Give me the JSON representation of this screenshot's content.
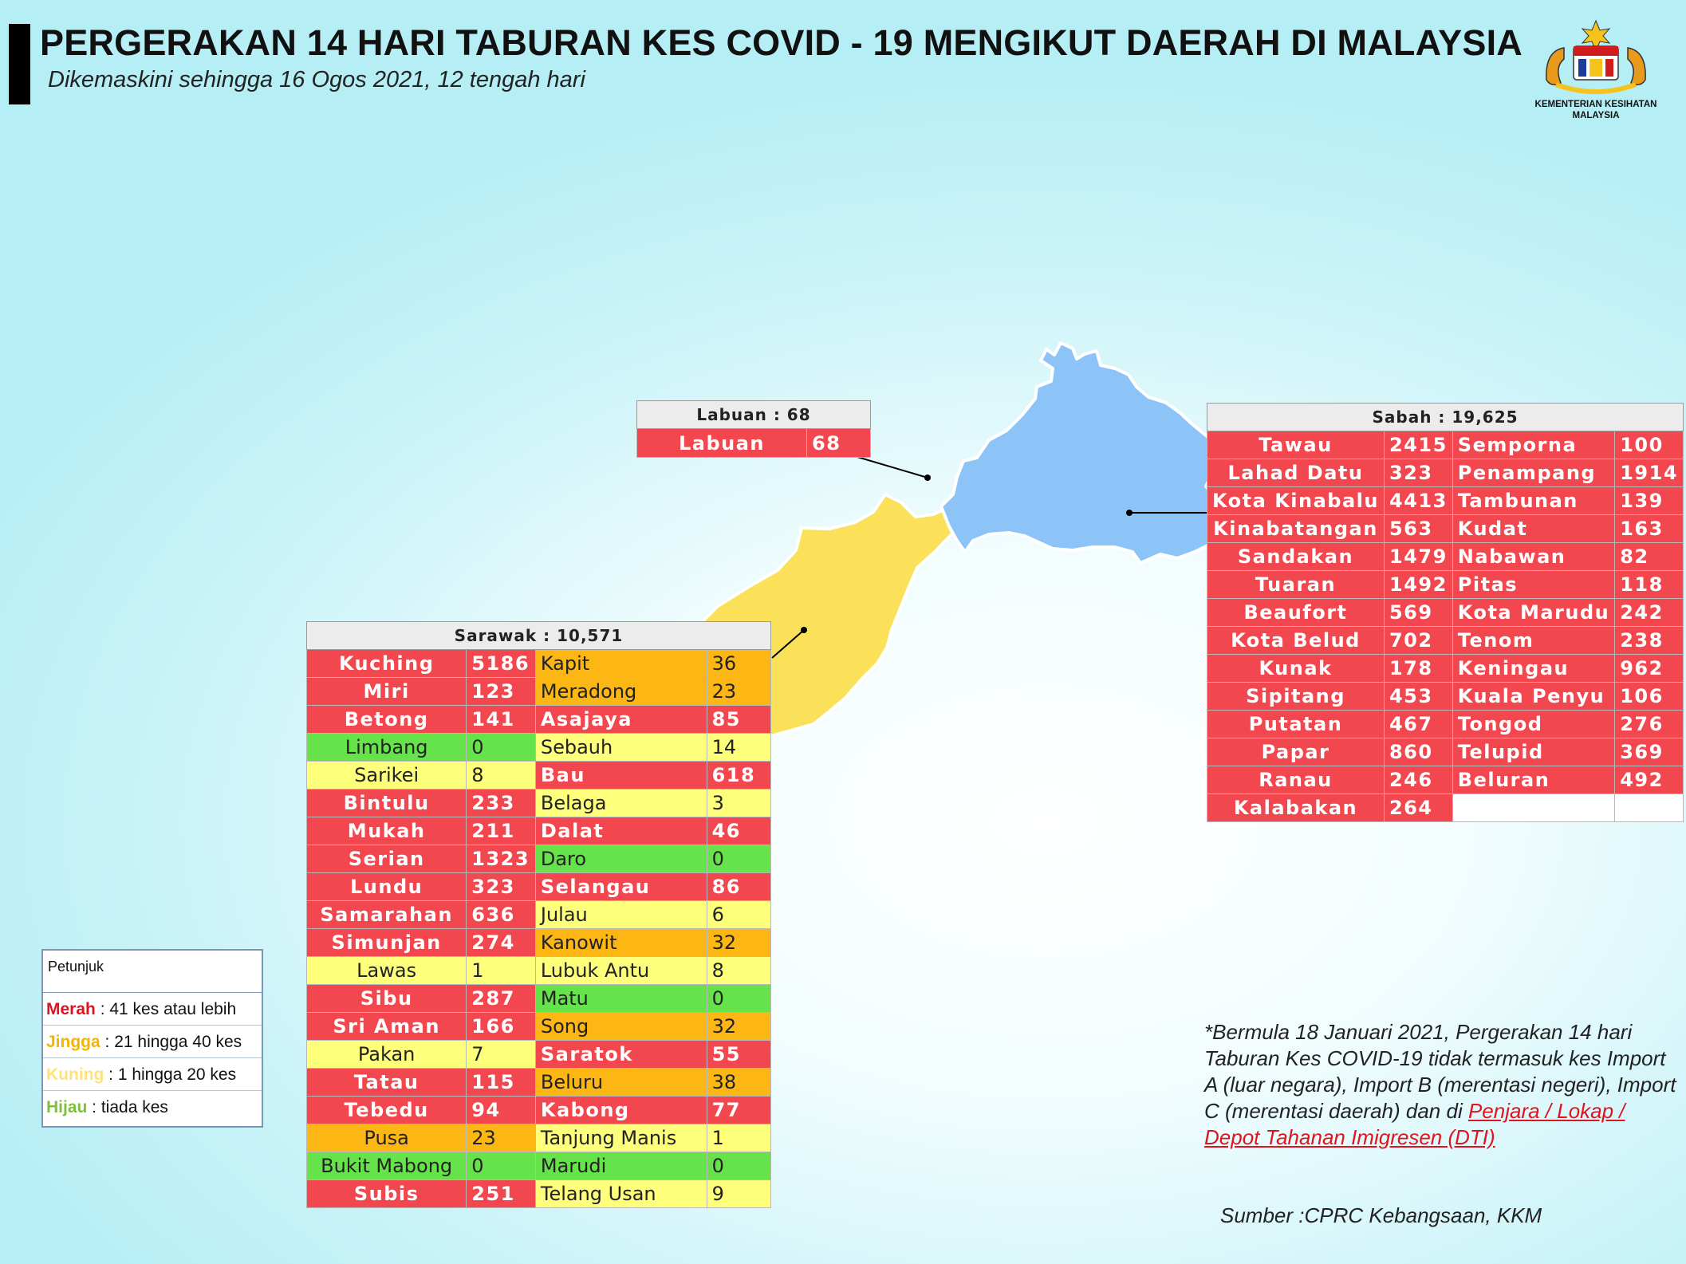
{
  "header": {
    "title": "PERGERAKAN 14 HARI TABURAN KES COVID - 19 MENGIKUT DAERAH DI MALAYSIA",
    "subtitle": "Dikemaskini sehingga 16 Ogos 2021, 12 tengah hari"
  },
  "logo": {
    "text": "KEMENTERIAN KESIHATAN MALAYSIA",
    "icon": "malaysia-coat-of-arms-icon"
  },
  "colors": {
    "merah": "#f2474f",
    "jingga": "#fdb714",
    "kuning": "#feff7a",
    "hijau": "#66e34a",
    "sabah_map": "#8dc4f7",
    "sarawak_map": "#fbe15a"
  },
  "labuan": {
    "title": "Labuan : 68",
    "rows": [
      {
        "name": "Labuan",
        "value": "68",
        "level": "r"
      }
    ]
  },
  "sabah": {
    "title": "Sabah : 19,625",
    "rows": [
      [
        {
          "name": "Tawau",
          "value": "2415",
          "level": "r"
        },
        {
          "name": "Semporna",
          "value": "100",
          "level": "r"
        }
      ],
      [
        {
          "name": "Lahad Datu",
          "value": "323",
          "level": "r"
        },
        {
          "name": "Penampang",
          "value": "1914",
          "level": "r"
        }
      ],
      [
        {
          "name": "Kota Kinabalu",
          "value": "4413",
          "level": "r"
        },
        {
          "name": "Tambunan",
          "value": "139",
          "level": "r"
        }
      ],
      [
        {
          "name": "Kinabatangan",
          "value": "563",
          "level": "r"
        },
        {
          "name": "Kudat",
          "value": "163",
          "level": "r"
        }
      ],
      [
        {
          "name": "Sandakan",
          "value": "1479",
          "level": "r"
        },
        {
          "name": "Nabawan",
          "value": "82",
          "level": "r"
        }
      ],
      [
        {
          "name": "Tuaran",
          "value": "1492",
          "level": "r"
        },
        {
          "name": "Pitas",
          "value": "118",
          "level": "r"
        }
      ],
      [
        {
          "name": "Beaufort",
          "value": "569",
          "level": "r"
        },
        {
          "name": "Kota Marudu",
          "value": "242",
          "level": "r"
        }
      ],
      [
        {
          "name": "Kota Belud",
          "value": "702",
          "level": "r"
        },
        {
          "name": "Tenom",
          "value": "238",
          "level": "r"
        }
      ],
      [
        {
          "name": "Kunak",
          "value": "178",
          "level": "r"
        },
        {
          "name": "Keningau",
          "value": "962",
          "level": "r"
        }
      ],
      [
        {
          "name": "Sipitang",
          "value": "453",
          "level": "r"
        },
        {
          "name": "Kuala Penyu",
          "value": "106",
          "level": "r"
        }
      ],
      [
        {
          "name": "Putatan",
          "value": "467",
          "level": "r"
        },
        {
          "name": "Tongod",
          "value": "276",
          "level": "r"
        }
      ],
      [
        {
          "name": "Papar",
          "value": "860",
          "level": "r"
        },
        {
          "name": "Telupid",
          "value": "369",
          "level": "r"
        }
      ],
      [
        {
          "name": "Ranau",
          "value": "246",
          "level": "r"
        },
        {
          "name": "Beluran",
          "value": "492",
          "level": "r"
        }
      ],
      [
        {
          "name": "Kalabakan",
          "value": "264",
          "level": "r"
        },
        {
          "name": "",
          "value": "",
          "level": "e"
        }
      ]
    ]
  },
  "sarawak": {
    "title": "Sarawak : 10,571",
    "rows": [
      [
        {
          "name": "Kuching",
          "value": "5186",
          "level": "r"
        },
        {
          "name": "Kapit",
          "value": "36",
          "level": "o"
        }
      ],
      [
        {
          "name": "Miri",
          "value": "123",
          "level": "r"
        },
        {
          "name": "Meradong",
          "value": "23",
          "level": "o"
        }
      ],
      [
        {
          "name": "Betong",
          "value": "141",
          "level": "r"
        },
        {
          "name": "Asajaya",
          "value": "85",
          "level": "r"
        }
      ],
      [
        {
          "name": "Limbang",
          "value": "0",
          "level": "g"
        },
        {
          "name": "Sebauh",
          "value": "14",
          "level": "y"
        }
      ],
      [
        {
          "name": "Sarikei",
          "value": "8",
          "level": "y"
        },
        {
          "name": "Bau",
          "value": "618",
          "level": "r"
        }
      ],
      [
        {
          "name": "Bintulu",
          "value": "233",
          "level": "r"
        },
        {
          "name": "Belaga",
          "value": "3",
          "level": "y"
        }
      ],
      [
        {
          "name": "Mukah",
          "value": "211",
          "level": "r"
        },
        {
          "name": "Dalat",
          "value": "46",
          "level": "r"
        }
      ],
      [
        {
          "name": "Serian",
          "value": "1323",
          "level": "r"
        },
        {
          "name": "Daro",
          "value": "0",
          "level": "g"
        }
      ],
      [
        {
          "name": "Lundu",
          "value": "323",
          "level": "r"
        },
        {
          "name": "Selangau",
          "value": "86",
          "level": "r"
        }
      ],
      [
        {
          "name": "Samarahan",
          "value": "636",
          "level": "r"
        },
        {
          "name": "Julau",
          "value": "6",
          "level": "y"
        }
      ],
      [
        {
          "name": "Simunjan",
          "value": "274",
          "level": "r"
        },
        {
          "name": "Kanowit",
          "value": "32",
          "level": "o"
        }
      ],
      [
        {
          "name": "Lawas",
          "value": "1",
          "level": "y"
        },
        {
          "name": "Lubuk Antu",
          "value": "8",
          "level": "y"
        }
      ],
      [
        {
          "name": "Sibu",
          "value": "287",
          "level": "r"
        },
        {
          "name": "Matu",
          "value": "0",
          "level": "g"
        }
      ],
      [
        {
          "name": "Sri Aman",
          "value": "166",
          "level": "r"
        },
        {
          "name": "Song",
          "value": "32",
          "level": "o"
        }
      ],
      [
        {
          "name": "Pakan",
          "value": "7",
          "level": "y"
        },
        {
          "name": "Saratok",
          "value": "55",
          "level": "r"
        }
      ],
      [
        {
          "name": "Tatau",
          "value": "115",
          "level": "r"
        },
        {
          "name": "Beluru",
          "value": "38",
          "level": "o"
        }
      ],
      [
        {
          "name": "Tebedu",
          "value": "94",
          "level": "r"
        },
        {
          "name": "Kabong",
          "value": "77",
          "level": "r"
        }
      ],
      [
        {
          "name": "Pusa",
          "value": "23",
          "level": "o"
        },
        {
          "name": "Tanjung Manis",
          "value": "1",
          "level": "y"
        }
      ],
      [
        {
          "name": "Bukit Mabong",
          "value": "0",
          "level": "g"
        },
        {
          "name": "Marudi",
          "value": "0",
          "level": "g"
        }
      ],
      [
        {
          "name": "Subis",
          "value": "251",
          "level": "r"
        },
        {
          "name": "Telang Usan",
          "value": "9",
          "level": "y"
        }
      ]
    ]
  },
  "legend": {
    "title": "Petunjuk",
    "items": [
      {
        "key": "Merah",
        "text": " : 41 kes atau lebih",
        "color": "#e0141e"
      },
      {
        "key": "Jingga",
        "text": " : 21 hingga 40 kes",
        "color": "#f4b400"
      },
      {
        "key": "Kuning",
        "text": " : 1 hingga 20 kes",
        "color": "#ffe27a"
      },
      {
        "key": "Hijau",
        "text": " : tiada kes",
        "color": "#7fbf3f"
      }
    ]
  },
  "note": {
    "text": "*Bermula 18 Januari 2021, Pergerakan 14 hari Taburan Kes COVID-19 tidak termasuk kes Import A (luar negara), Import B (merentasi negeri), Import C (merentasi daerah) dan di",
    "highlight": "Penjara / Lokap / Depot Tahanan Imigresen (DTI)"
  },
  "source": "Sumber :CPRC Kebangsaan,  KKM"
}
